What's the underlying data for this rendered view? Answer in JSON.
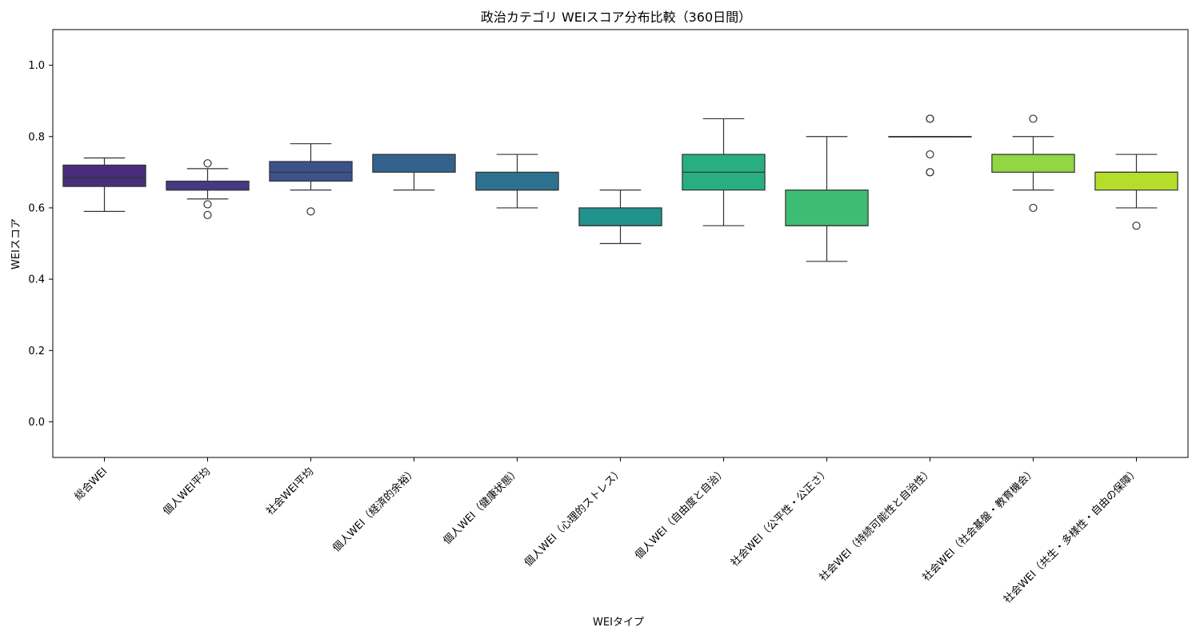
{
  "chart_data": {
    "type": "boxplot",
    "title": "政治カテゴリ WEIスコア分布比較（360日間）",
    "xlabel": "WEIタイプ",
    "ylabel": "WEIスコア",
    "ylim": [
      -0.1,
      1.1
    ],
    "yticks": [
      "0.0",
      "0.2",
      "0.4",
      "0.6",
      "0.8",
      "1.0"
    ],
    "grid": false,
    "legend": "none",
    "categories": [
      "総合WEI",
      "個人WEI平均",
      "社会WEI平均",
      "個人WEI（経済的余裕）",
      "個人WEI（健康状態）",
      "個人WEI（心理的ストレス）",
      "個人WEI（自由度と自治）",
      "社会WEI（公平性・公正さ）",
      "社会WEI（持続可能性と自治性）",
      "社会WEI（社会基盤・教育機会）",
      "社会WEI（共生・多様性・自由の保障）"
    ],
    "boxes": [
      {
        "whisker_low": 0.59,
        "q1": 0.66,
        "median": 0.685,
        "q3": 0.72,
        "whisker_high": 0.74,
        "outliers": [],
        "color": "#472d7b"
      },
      {
        "whisker_low": 0.625,
        "q1": 0.65,
        "median": 0.65,
        "q3": 0.675,
        "whisker_high": 0.71,
        "outliers": [
          0.725,
          0.61,
          0.58
        ],
        "color": "#443a83"
      },
      {
        "whisker_low": 0.65,
        "q1": 0.675,
        "median": 0.7,
        "q3": 0.73,
        "whisker_high": 0.78,
        "outliers": [
          0.59
        ],
        "color": "#3b528b"
      },
      {
        "whisker_low": 0.65,
        "q1": 0.7,
        "median": 0.75,
        "q3": 0.75,
        "whisker_high": 0.75,
        "outliers": [],
        "color": "#33638d"
      },
      {
        "whisker_low": 0.6,
        "q1": 0.65,
        "median": 0.65,
        "q3": 0.7,
        "whisker_high": 0.75,
        "outliers": [],
        "color": "#2c728e"
      },
      {
        "whisker_low": 0.5,
        "q1": 0.55,
        "median": 0.55,
        "q3": 0.6,
        "whisker_high": 0.65,
        "outliers": [],
        "color": "#21918c"
      },
      {
        "whisker_low": 0.55,
        "q1": 0.65,
        "median": 0.7,
        "q3": 0.75,
        "whisker_high": 0.85,
        "outliers": [],
        "color": "#28ae80"
      },
      {
        "whisker_low": 0.45,
        "q1": 0.55,
        "median": 0.55,
        "q3": 0.65,
        "whisker_high": 0.8,
        "outliers": [],
        "color": "#3fbc73"
      },
      {
        "whisker_low": 0.8,
        "q1": 0.8,
        "median": 0.8,
        "q3": 0.8,
        "whisker_high": 0.8,
        "outliers": [
          0.85,
          0.85,
          0.75,
          0.7,
          0.7
        ],
        "color": "#5ec962"
      },
      {
        "whisker_low": 0.65,
        "q1": 0.7,
        "median": 0.75,
        "q3": 0.75,
        "whisker_high": 0.8,
        "outliers": [
          0.85,
          0.6
        ],
        "color": "#90d743"
      },
      {
        "whisker_low": 0.6,
        "q1": 0.65,
        "median": 0.7,
        "q3": 0.7,
        "whisker_high": 0.75,
        "outliers": [
          0.55
        ],
        "color": "#b5de2b"
      }
    ]
  }
}
